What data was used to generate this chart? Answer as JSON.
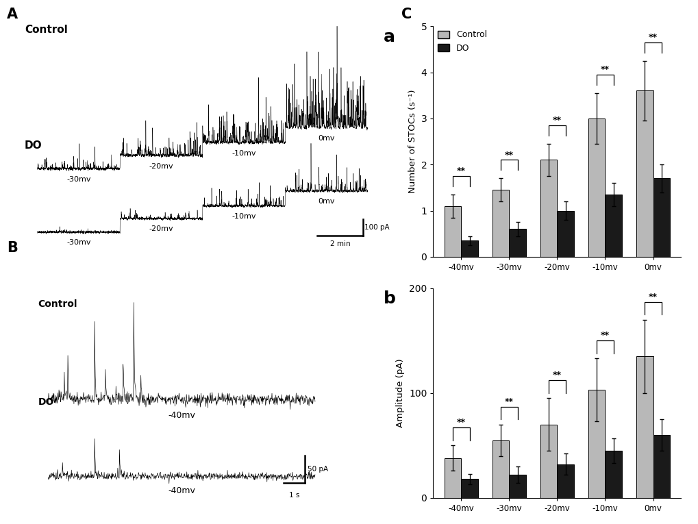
{
  "freq_categories": [
    "-40mv",
    "-30mv",
    "-20mv",
    "-10mv",
    "0mv"
  ],
  "freq_control_mean": [
    1.1,
    1.45,
    2.1,
    3.0,
    3.6
  ],
  "freq_control_err": [
    0.25,
    0.25,
    0.35,
    0.55,
    0.65
  ],
  "freq_do_mean": [
    0.35,
    0.6,
    1.0,
    1.35,
    1.7
  ],
  "freq_do_err": [
    0.1,
    0.15,
    0.2,
    0.25,
    0.3
  ],
  "amp_control_mean": [
    38,
    55,
    70,
    103,
    135
  ],
  "amp_control_err": [
    12,
    15,
    25,
    30,
    35
  ],
  "amp_do_mean": [
    18,
    22,
    32,
    45,
    60
  ],
  "amp_do_err": [
    5,
    8,
    10,
    12,
    15
  ],
  "bar_width": 0.35,
  "control_color": "#b8b8b8",
  "do_color": "#1a1a1a",
  "freq_ylabel": "Number of STOCs (s⁻¹)",
  "amp_ylabel": "Amplitude (pA)",
  "freq_ylim": [
    0,
    5
  ],
  "amp_ylim": [
    0,
    200
  ],
  "freq_yticks": [
    0,
    1,
    2,
    3,
    4,
    5
  ],
  "amp_yticks": [
    0,
    100,
    200
  ],
  "background_color": "#ffffff",
  "subplot_label_a": "a",
  "subplot_label_b": "b",
  "control_label": "Control",
  "do_label": "DO"
}
